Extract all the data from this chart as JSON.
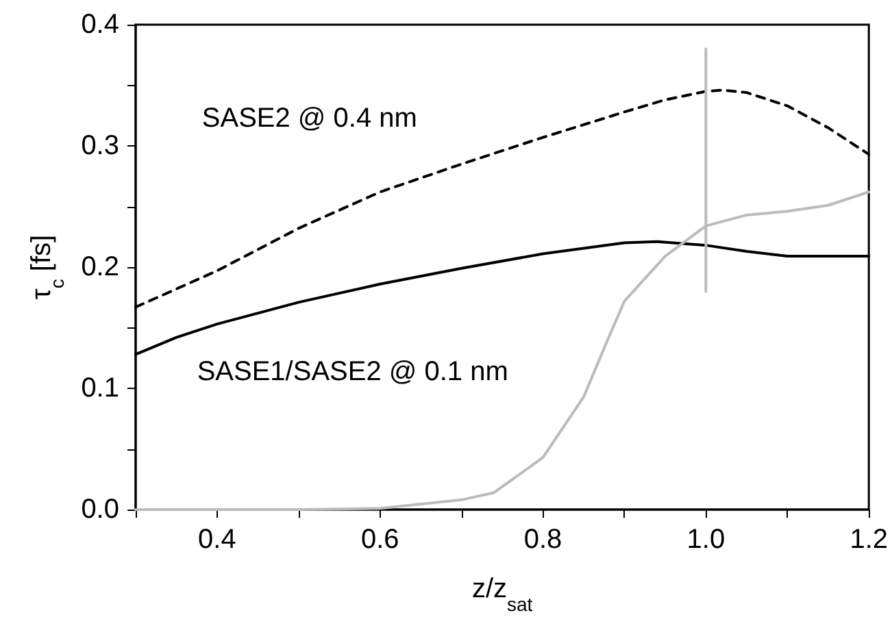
{
  "chart_data": {
    "type": "line",
    "xlabel": "z/z$_{sat}$",
    "ylabel": "τ$_{c}$ [fs]",
    "xlim": [
      0.3,
      1.2
    ],
    "xticks": [
      {
        "value": 0.3,
        "label": null
      },
      0.4,
      {
        "value": 0.5,
        "label": null
      },
      0.6,
      {
        "value": 0.7,
        "label": null
      },
      0.8,
      {
        "value": 0.9,
        "label": null
      },
      {
        "value": 1.0,
        "label": "1.0"
      },
      {
        "value": 1.1,
        "label": null
      },
      1.2
    ],
    "ylim": [
      0,
      0.4
    ],
    "yticks": [
      {
        "value": 0,
        "label": "0.0"
      },
      {
        "value": 0.05,
        "label": null
      },
      0.1,
      {
        "value": 0.15,
        "label": null
      },
      0.2,
      {
        "value": 0.25,
        "label": null
      },
      0.3,
      {
        "value": 0.35,
        "label": null
      },
      0.4
    ],
    "grid": false,
    "legend": false,
    "series": [
      {
        "name": "SASE2 @ 0.4 nm",
        "color": "#000000",
        "line_style": "dashed",
        "x": [
          0.3,
          0.4,
          0.5,
          0.6,
          0.7,
          0.8,
          0.9,
          0.95,
          1.0,
          1.02,
          1.05,
          1.1,
          1.15,
          1.2
        ],
        "values": [
          0.167,
          0.197,
          0.232,
          0.262,
          0.285,
          0.307,
          0.328,
          0.338,
          0.345,
          0.346,
          0.344,
          0.333,
          0.315,
          0.293
        ]
      },
      {
        "name": "SASE1/SASE2 @ 0.1 nm",
        "color": "#000000",
        "line_style": "solid",
        "x": [
          0.3,
          0.35,
          0.4,
          0.5,
          0.6,
          0.7,
          0.8,
          0.9,
          0.94,
          1.0,
          1.05,
          1.1,
          1.15,
          1.2
        ],
        "values": [
          0.128,
          0.142,
          0.153,
          0.171,
          0.186,
          0.199,
          0.211,
          0.22,
          0.221,
          0.218,
          0.213,
          0.209,
          0.209,
          0.209
        ]
      },
      {
        "color": "#bbbbbb",
        "line_style": "solid",
        "x": [
          0.3,
          0.5,
          0.6,
          0.7,
          0.74,
          0.8,
          0.85,
          0.88,
          0.9,
          0.95,
          1.0,
          1.05,
          1.1,
          1.15,
          1.2
        ],
        "values": [
          0,
          0,
          0.001,
          0.008,
          0.014,
          0.043,
          0.093,
          0.141,
          0.172,
          0.209,
          0.234,
          0.243,
          0.246,
          0.251,
          0.262
        ]
      },
      {
        "color": "#bbbbbb",
        "line_style": "solid",
        "x": [
          1.0,
          1.0
        ],
        "values": [
          0.18,
          0.38
        ]
      }
    ]
  }
}
